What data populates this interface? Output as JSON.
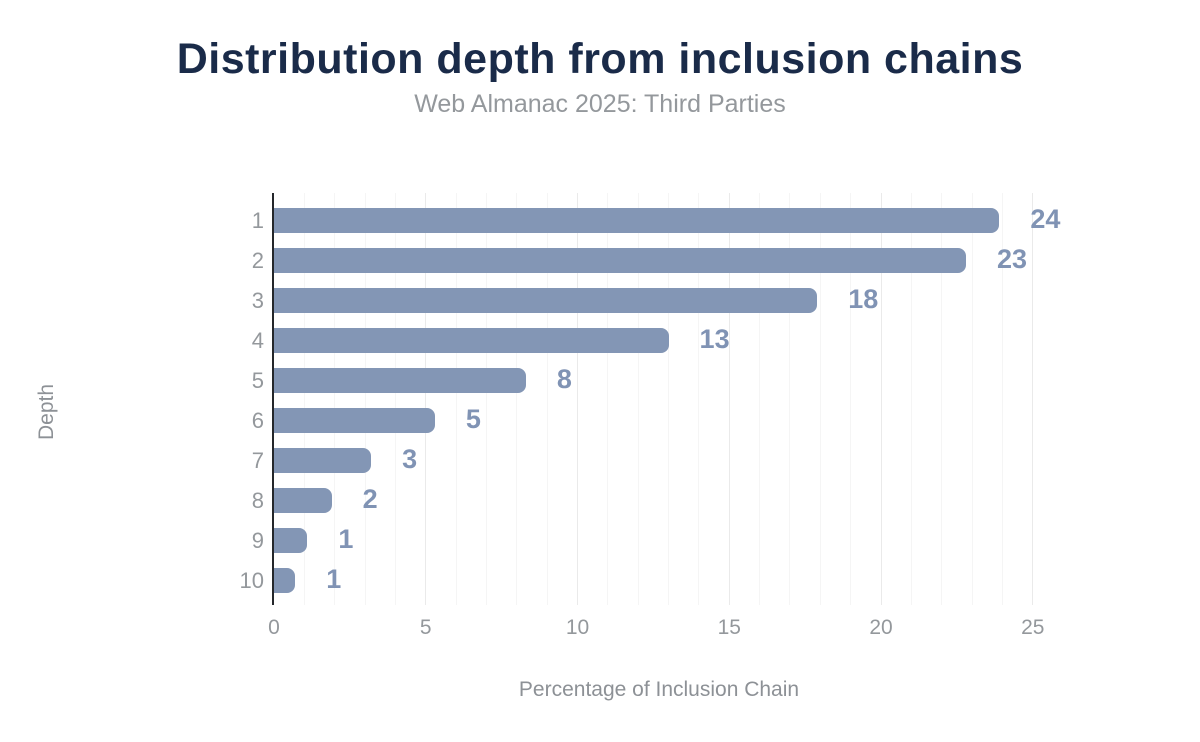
{
  "header": {
    "title": "Distribution depth from inclusion chains",
    "subtitle": "Web Almanac 2025: Third Parties"
  },
  "chart_data": {
    "type": "bar",
    "orientation": "horizontal",
    "title": "Distribution depth from inclusion chains",
    "subtitle": "Web Almanac 2025: Third Parties",
    "xlabel": "Percentage of Inclusion Chain",
    "ylabel": "Depth",
    "categories": [
      "1",
      "2",
      "3",
      "4",
      "5",
      "6",
      "7",
      "8",
      "9",
      "10"
    ],
    "values": [
      23.9,
      22.8,
      17.9,
      13.0,
      8.3,
      5.3,
      3.2,
      1.9,
      1.1,
      0.7
    ],
    "value_labels": [
      "24",
      "23",
      "18",
      "13",
      "8",
      "5",
      "3",
      "2",
      "1",
      "1"
    ],
    "xticks": [
      0,
      5,
      10,
      15,
      20,
      25
    ],
    "xlim": [
      0,
      25.37
    ],
    "grid": {
      "vertical_minor_every": 1,
      "vertical_major_every": 5,
      "horizontal": false
    },
    "legend": null,
    "colors": {
      "bar": "#8396b5",
      "value_label": "#8093b4",
      "title": "#1a2b49",
      "subtitle": "#94989c",
      "axis_text": "#94989c",
      "axis_label": "#8d9196",
      "axis_line": "#24272b",
      "grid_minor": "#f5f5f5",
      "grid_major": "#eaeaea",
      "background": "#ffffff"
    }
  }
}
